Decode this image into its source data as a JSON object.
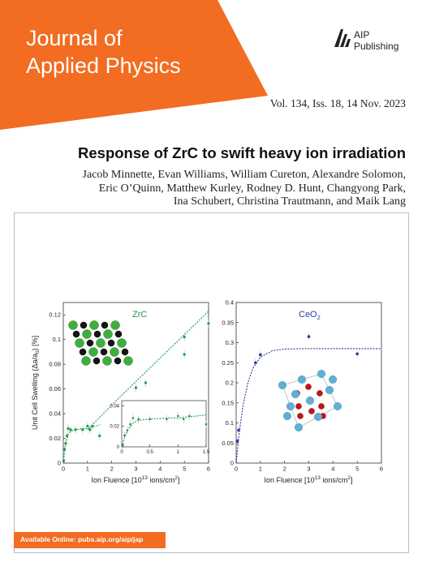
{
  "journal": {
    "title": "Journal of\nApplied Physics",
    "publisher": "AIP\nPublishing",
    "publisher_icon": "aip-logo-icon",
    "accent_color": "#f26c21"
  },
  "issue": "Vol. 134, Iss. 18, 14 Nov. 2023",
  "article": {
    "title": "Response of ZrC to swift heavy ion irradiation",
    "authors": [
      "Jacob Minnette, Evan Williams, William Cureton, Alexandre Solomon,",
      "Eric O’Quinn, Matthew Kurley, Rodney D. Hunt, Changyong Park,",
      "Ina Schubert, Christina Trautmann, and Maik Lang"
    ]
  },
  "footer": "Available Online: pubs.aip.org/aip/jap",
  "chart_data": [
    {
      "type": "scatter",
      "title": "ZrC",
      "xlabel": "Ion Fluence [10",
      "xlabel_sup": "13",
      "xlabel_unit": " ions/cm",
      "xlabel_sup2": "2",
      "xlabel_close": "]",
      "ylabel": "Unit Cell Swelling (Δa/a",
      "ylabel_sub": "0",
      "ylabel_close": ") [%]",
      "xlim": [
        0,
        6
      ],
      "ylim": [
        0,
        0.13
      ],
      "xticks": [
        "0",
        "1",
        "2",
        "3",
        "4",
        "5",
        "6"
      ],
      "yticks": [
        "0",
        "0.02",
        "0.04",
        "0.06",
        "0.08",
        "0.1",
        "0.12"
      ],
      "color": "#1a9a4a",
      "points": [
        {
          "x": 0.02,
          "y": 0.002
        },
        {
          "x": 0.05,
          "y": 0.011
        },
        {
          "x": 0.1,
          "y": 0.016
        },
        {
          "x": 0.15,
          "y": 0.022
        },
        {
          "x": 0.2,
          "y": 0.028
        },
        {
          "x": 0.3,
          "y": 0.027
        },
        {
          "x": 0.5,
          "y": 0.027
        },
        {
          "x": 0.8,
          "y": 0.027
        },
        {
          "x": 1.0,
          "y": 0.03
        },
        {
          "x": 1.1,
          "y": 0.027
        },
        {
          "x": 1.2,
          "y": 0.03
        },
        {
          "x": 1.5,
          "y": 0.022
        },
        {
          "x": 3.0,
          "y": 0.061
        },
        {
          "x": 3.4,
          "y": 0.065
        },
        {
          "x": 5.0,
          "y": 0.102
        },
        {
          "x": 5.0,
          "y": 0.088
        },
        {
          "x": 6.0,
          "y": 0.113
        }
      ],
      "fit_series": [
        {
          "name": "",
          "x": [
            0,
            0.05,
            0.1,
            0.2,
            0.3,
            0.5,
            0.8,
            1.0,
            1.5
          ],
          "y": [
            0,
            0.009,
            0.016,
            0.023,
            0.026,
            0.027,
            0.028,
            0.028,
            0.031
          ]
        },
        {
          "name": "",
          "x": [
            1.0,
            2.0,
            3.0,
            4.0,
            5.0,
            6.0
          ],
          "y": [
            0.027,
            0.047,
            0.066,
            0.085,
            0.104,
            0.123
          ]
        }
      ],
      "inset": {
        "xlim": [
          0,
          1.5
        ],
        "ylim": [
          0,
          0.045
        ],
        "xticks": [
          "0",
          "0.5",
          "1",
          "1.5"
        ],
        "yticks": [
          "0",
          "0.02",
          "0.04"
        ],
        "points": [
          {
            "x": 0.02,
            "y": 0.002
          },
          {
            "x": 0.05,
            "y": 0.011
          },
          {
            "x": 0.1,
            "y": 0.016
          },
          {
            "x": 0.15,
            "y": 0.022
          },
          {
            "x": 0.2,
            "y": 0.028
          },
          {
            "x": 0.3,
            "y": 0.027
          },
          {
            "x": 0.5,
            "y": 0.027
          },
          {
            "x": 0.8,
            "y": 0.027
          },
          {
            "x": 1.0,
            "y": 0.03
          },
          {
            "x": 1.1,
            "y": 0.027
          },
          {
            "x": 1.2,
            "y": 0.03
          },
          {
            "x": 1.5,
            "y": 0.022
          }
        ]
      }
    },
    {
      "type": "scatter",
      "title": "CeO",
      "title_sub": "2",
      "xlabel": "Ion Fluence [10",
      "xlabel_sup": "13",
      "xlabel_unit": " ions/cm",
      "xlabel_sup2": "2",
      "xlabel_close": "]",
      "xlim": [
        0,
        6
      ],
      "ylim": [
        0,
        0.4
      ],
      "xticks": [
        "0",
        "1",
        "2",
        "3",
        "4",
        "5",
        "6"
      ],
      "yticks": [
        "0",
        "0.05",
        "0.1",
        "0.15",
        "0.2",
        "0.25",
        "0.3",
        "0.35",
        "0.4"
      ],
      "color": "#2b3a9a",
      "points": [
        {
          "x": 0.05,
          "y": 0.055
        },
        {
          "x": 0.1,
          "y": 0.082
        },
        {
          "x": 0.8,
          "y": 0.25
        },
        {
          "x": 1.0,
          "y": 0.27
        },
        {
          "x": 3.0,
          "y": 0.315
        },
        {
          "x": 5.0,
          "y": 0.272
        }
      ],
      "fit_series": [
        {
          "name": "",
          "x": [
            0,
            0.1,
            0.2,
            0.3,
            0.5,
            0.7,
            1.0,
            1.5,
            2.0,
            3.0,
            4.0,
            5.0,
            6.0
          ],
          "y": [
            0,
            0.061,
            0.109,
            0.148,
            0.203,
            0.237,
            0.264,
            0.28,
            0.284,
            0.285,
            0.285,
            0.285,
            0.285
          ]
        }
      ]
    }
  ]
}
